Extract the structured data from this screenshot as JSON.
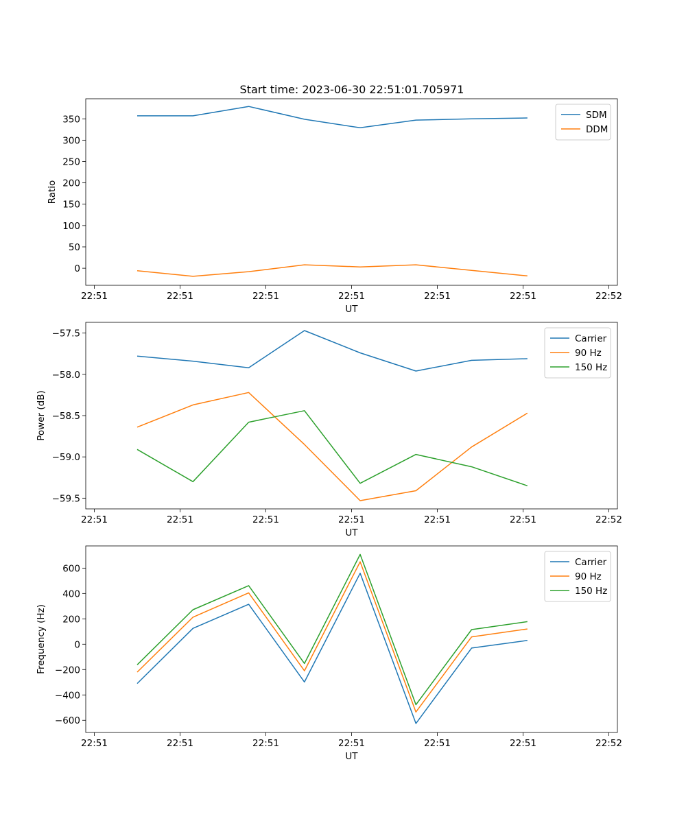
{
  "figure": {
    "title": "Start time: 2023-06-30 22:51:01.705971"
  },
  "chart_data": [
    {
      "type": "line",
      "title": "Start time: 2023-06-30 22:51:01.705971",
      "xlabel": "UT",
      "ylabel": "Ratio",
      "xlim": [
        0,
        6.2
      ],
      "ylim": [
        -40,
        397
      ],
      "x_ticks": [
        0.1,
        1.1,
        2.1,
        3.1,
        4.1,
        5.1,
        6.1
      ],
      "x_tick_labels": [
        "22:51",
        "22:51",
        "22:51",
        "22:51",
        "22:51",
        "22:51",
        "22:52"
      ],
      "y_ticks": [
        0,
        50,
        100,
        150,
        200,
        250,
        300,
        350
      ],
      "y_tick_labels": [
        "0",
        "50",
        "100",
        "150",
        "200",
        "250",
        "300",
        "350"
      ],
      "x": [
        0.6,
        1.25,
        1.9,
        2.55,
        3.2,
        3.85,
        4.5,
        5.15
      ],
      "legend_position": "top-right",
      "series": [
        {
          "name": "SDM",
          "color": "#1f77b4",
          "values": [
            357,
            357,
            379,
            349,
            329,
            347,
            350,
            352
          ]
        },
        {
          "name": "DDM",
          "color": "#ff7f0e",
          "values": [
            -6,
            -19,
            -8,
            8,
            3,
            8,
            -5,
            -18
          ]
        }
      ]
    },
    {
      "type": "line",
      "xlabel": "UT",
      "ylabel": "Power (dB)",
      "xlim": [
        0,
        6.2
      ],
      "ylim": [
        -59.63,
        -57.37
      ],
      "x_ticks": [
        0.1,
        1.1,
        2.1,
        3.1,
        4.1,
        5.1,
        6.1
      ],
      "x_tick_labels": [
        "22:51",
        "22:51",
        "22:51",
        "22:51",
        "22:51",
        "22:51",
        "22:52"
      ],
      "y_ticks": [
        -59.5,
        -59.0,
        -58.5,
        -58.0,
        -57.5
      ],
      "y_tick_labels": [
        "−59.5",
        "−59.0",
        "−58.5",
        "−58.0",
        "−57.5"
      ],
      "x": [
        0.6,
        1.25,
        1.9,
        2.55,
        3.2,
        3.85,
        4.5,
        5.15
      ],
      "legend_position": "top-right",
      "series": [
        {
          "name": "Carrier",
          "color": "#1f77b4",
          "values": [
            -57.78,
            -57.84,
            -57.92,
            -57.47,
            -57.74,
            -57.96,
            -57.83,
            -57.81
          ]
        },
        {
          "name": "90 Hz",
          "color": "#ff7f0e",
          "values": [
            -58.64,
            -58.37,
            -58.22,
            -58.85,
            -59.53,
            -59.41,
            -58.88,
            -58.47
          ]
        },
        {
          "name": "150 Hz",
          "color": "#2ca02c",
          "values": [
            -58.91,
            -59.3,
            -58.58,
            -58.44,
            -59.32,
            -58.97,
            -59.12,
            -59.35
          ]
        }
      ]
    },
    {
      "type": "line",
      "xlabel": "UT",
      "ylabel": "Frequency (Hz)",
      "xlim": [
        0,
        6.2
      ],
      "ylim": [
        -696,
        775
      ],
      "x_ticks": [
        0.1,
        1.1,
        2.1,
        3.1,
        4.1,
        5.1,
        6.1
      ],
      "x_tick_labels": [
        "22:51",
        "22:51",
        "22:51",
        "22:51",
        "22:51",
        "22:51",
        "22:52"
      ],
      "y_ticks": [
        -600,
        -400,
        -200,
        0,
        200,
        400,
        600
      ],
      "y_tick_labels": [
        "−600",
        "−400",
        "−200",
        "0",
        "200",
        "400",
        "600"
      ],
      "x": [
        0.6,
        1.25,
        1.9,
        2.55,
        3.2,
        3.85,
        4.5,
        5.15
      ],
      "legend_position": "top-right",
      "series": [
        {
          "name": "Carrier",
          "color": "#1f77b4",
          "values": [
            -310,
            125,
            315,
            -298,
            560,
            -625,
            -30,
            30
          ]
        },
        {
          "name": "90 Hz",
          "color": "#ff7f0e",
          "values": [
            -220,
            213,
            405,
            -210,
            650,
            -535,
            58,
            120
          ]
        },
        {
          "name": "150 Hz",
          "color": "#2ca02c",
          "values": [
            -162,
            272,
            462,
            -152,
            708,
            -477,
            115,
            178
          ]
        }
      ]
    }
  ]
}
